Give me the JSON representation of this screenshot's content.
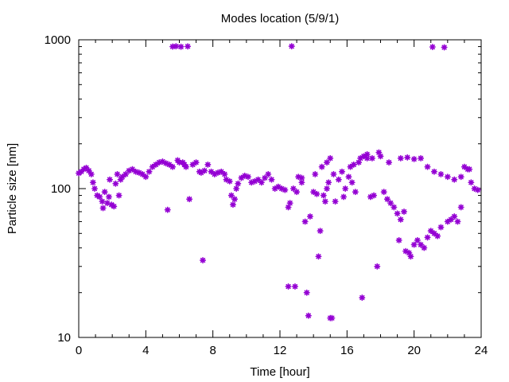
{
  "chart_data": {
    "type": "scatter",
    "title": "Modes location (5/9/1)",
    "xlabel": "Time [hour]",
    "ylabel": "Particle size [nm]",
    "xlim": [
      0,
      24
    ],
    "ylim": [
      10,
      1000
    ],
    "y_scale": "log",
    "grid": false,
    "legend": "none",
    "marker_color": "#9400d3",
    "x_ticks": [
      {
        "value": 0,
        "label": "0"
      },
      {
        "value": 4,
        "label": "4"
      },
      {
        "value": 8,
        "label": "8"
      },
      {
        "value": 12,
        "label": "12"
      },
      {
        "value": 16,
        "label": "16"
      },
      {
        "value": 20,
        "label": "20"
      },
      {
        "value": 24,
        "label": "24"
      }
    ],
    "y_ticks": [
      {
        "value": 10,
        "label": "10"
      },
      {
        "value": 100,
        "label": "100"
      },
      {
        "value": 1000,
        "label": "1000"
      }
    ],
    "x_minor_step": 1,
    "points": [
      [
        0.0,
        127
      ],
      [
        0.15,
        130
      ],
      [
        0.3,
        135
      ],
      [
        0.45,
        138
      ],
      [
        0.6,
        132
      ],
      [
        0.75,
        125
      ],
      [
        0.85,
        110
      ],
      [
        0.95,
        100
      ],
      [
        1.1,
        90
      ],
      [
        1.25,
        88
      ],
      [
        1.4,
        82
      ],
      [
        1.45,
        74
      ],
      [
        1.55,
        95
      ],
      [
        1.7,
        80
      ],
      [
        1.8,
        88
      ],
      [
        1.85,
        115
      ],
      [
        1.95,
        78
      ],
      [
        2.1,
        76
      ],
      [
        2.2,
        108
      ],
      [
        2.3,
        125
      ],
      [
        2.4,
        90
      ],
      [
        2.5,
        115
      ],
      [
        2.6,
        120
      ],
      [
        2.8,
        125
      ],
      [
        3.0,
        132
      ],
      [
        3.2,
        135
      ],
      [
        3.4,
        130
      ],
      [
        3.6,
        128
      ],
      [
        3.8,
        125
      ],
      [
        4.0,
        120
      ],
      [
        4.2,
        130
      ],
      [
        4.4,
        140
      ],
      [
        4.6,
        145
      ],
      [
        4.8,
        150
      ],
      [
        5.0,
        152
      ],
      [
        5.2,
        148
      ],
      [
        5.3,
        72
      ],
      [
        5.4,
        145
      ],
      [
        5.6,
        140
      ],
      [
        5.6,
        900
      ],
      [
        5.8,
        905
      ],
      [
        5.9,
        155
      ],
      [
        6.0,
        150
      ],
      [
        6.1,
        898
      ],
      [
        6.2,
        150
      ],
      [
        6.3,
        145
      ],
      [
        6.4,
        140
      ],
      [
        6.5,
        903
      ],
      [
        6.6,
        85
      ],
      [
        6.8,
        145
      ],
      [
        7.0,
        150
      ],
      [
        7.2,
        130
      ],
      [
        7.3,
        128
      ],
      [
        7.4,
        33
      ],
      [
        7.5,
        132
      ],
      [
        7.7,
        145
      ],
      [
        7.9,
        130
      ],
      [
        8.1,
        125
      ],
      [
        8.3,
        128
      ],
      [
        8.5,
        130
      ],
      [
        8.7,
        125
      ],
      [
        8.8,
        115
      ],
      [
        9.0,
        112
      ],
      [
        9.1,
        90
      ],
      [
        9.2,
        78
      ],
      [
        9.3,
        85
      ],
      [
        9.4,
        100
      ],
      [
        9.5,
        108
      ],
      [
        9.7,
        118
      ],
      [
        9.9,
        122
      ],
      [
        10.1,
        120
      ],
      [
        10.3,
        110
      ],
      [
        10.5,
        112
      ],
      [
        10.7,
        115
      ],
      [
        10.9,
        110
      ],
      [
        11.1,
        118
      ],
      [
        11.3,
        125
      ],
      [
        11.5,
        115
      ],
      [
        11.7,
        100
      ],
      [
        11.9,
        103
      ],
      [
        12.1,
        100
      ],
      [
        12.3,
        98
      ],
      [
        12.5,
        75
      ],
      [
        12.5,
        22
      ],
      [
        12.6,
        80
      ],
      [
        12.7,
        905
      ],
      [
        12.8,
        100
      ],
      [
        12.9,
        22
      ],
      [
        13.0,
        95
      ],
      [
        13.1,
        120
      ],
      [
        13.3,
        110
      ],
      [
        13.5,
        60
      ],
      [
        13.6,
        20
      ],
      [
        13.7,
        14
      ],
      [
        13.8,
        65
      ],
      [
        14.0,
        95
      ],
      [
        14.1,
        125
      ],
      [
        14.2,
        92
      ],
      [
        14.3,
        35
      ],
      [
        14.4,
        52
      ],
      [
        14.5,
        140
      ],
      [
        14.6,
        90
      ],
      [
        14.7,
        82
      ],
      [
        14.8,
        150
      ],
      [
        14.9,
        110
      ],
      [
        15.0,
        160
      ],
      [
        15.0,
        13.5
      ],
      [
        15.1,
        13.5
      ],
      [
        15.2,
        125
      ],
      [
        15.3,
        82
      ],
      [
        15.5,
        115
      ],
      [
        15.7,
        130
      ],
      [
        15.9,
        100
      ],
      [
        16.1,
        120
      ],
      [
        16.3,
        110
      ],
      [
        16.5,
        95
      ],
      [
        16.7,
        150
      ],
      [
        16.9,
        18.5
      ],
      [
        17.0,
        165
      ],
      [
        17.2,
        160
      ],
      [
        17.4,
        88
      ],
      [
        17.6,
        90
      ],
      [
        17.8,
        30
      ],
      [
        17.9,
        175
      ],
      [
        18.0,
        165
      ],
      [
        18.2,
        95
      ],
      [
        18.4,
        85
      ],
      [
        18.6,
        80
      ],
      [
        18.8,
        75
      ],
      [
        19.0,
        68
      ],
      [
        19.1,
        45
      ],
      [
        19.2,
        62
      ],
      [
        19.4,
        70
      ],
      [
        19.5,
        38
      ],
      [
        19.7,
        37
      ],
      [
        19.8,
        35
      ],
      [
        20.0,
        42
      ],
      [
        20.2,
        45
      ],
      [
        20.4,
        42
      ],
      [
        20.6,
        40
      ],
      [
        20.8,
        47
      ],
      [
        21.0,
        52
      ],
      [
        21.1,
        895
      ],
      [
        21.2,
        50
      ],
      [
        21.4,
        48
      ],
      [
        21.6,
        55
      ],
      [
        21.8,
        890
      ],
      [
        22.0,
        60
      ],
      [
        22.2,
        62
      ],
      [
        22.4,
        65
      ],
      [
        22.6,
        60
      ],
      [
        22.8,
        75
      ],
      [
        23.0,
        140
      ],
      [
        23.2,
        135
      ],
      [
        23.4,
        110
      ],
      [
        23.6,
        100
      ],
      [
        17.5,
        160
      ],
      [
        18.5,
        150
      ],
      [
        19.2,
        160
      ],
      [
        19.6,
        162
      ],
      [
        20.0,
        158
      ],
      [
        20.4,
        160
      ],
      [
        20.8,
        140
      ],
      [
        21.2,
        130
      ],
      [
        21.6,
        125
      ],
      [
        22.0,
        120
      ],
      [
        22.4,
        115
      ],
      [
        22.8,
        120
      ],
      [
        23.3,
        135
      ],
      [
        23.8,
        98
      ],
      [
        16.2,
        140
      ],
      [
        16.4,
        145
      ],
      [
        16.8,
        160
      ],
      [
        17.2,
        170
      ],
      [
        13.3,
        118
      ],
      [
        14.8,
        100
      ],
      [
        15.8,
        88
      ]
    ]
  }
}
